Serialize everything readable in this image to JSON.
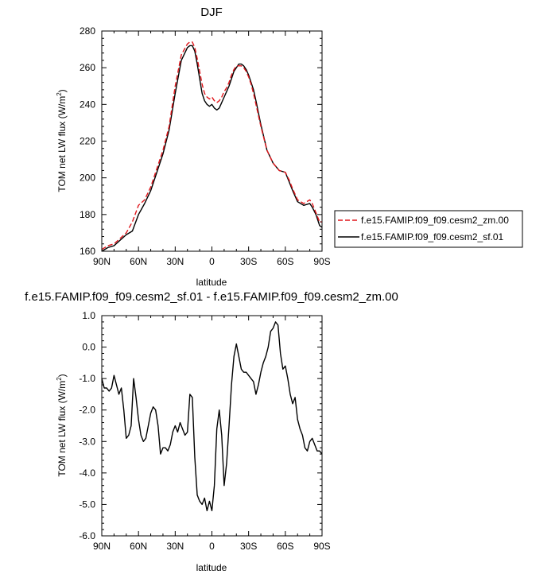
{
  "chart_data": [
    {
      "type": "line",
      "title": "DJF",
      "xlabel": "latitude",
      "ylabel_main": "TOM net LW flux (W/m",
      "ylabel_sup": "2",
      "ylabel_end": ")",
      "xlim": [
        90,
        -90
      ],
      "ylim": [
        160,
        280
      ],
      "x_ticks": [
        {
          "value": 90,
          "label": "90N"
        },
        {
          "value": 60,
          "label": "60N"
        },
        {
          "value": 30,
          "label": "30N"
        },
        {
          "value": 0,
          "label": "0"
        },
        {
          "value": -30,
          "label": "30S"
        },
        {
          "value": -60,
          "label": "60S"
        },
        {
          "value": -90,
          "label": "90S"
        }
      ],
      "y_ticks": [
        {
          "value": 160,
          "label": "160"
        },
        {
          "value": 180,
          "label": "180"
        },
        {
          "value": 200,
          "label": "200"
        },
        {
          "value": 220,
          "label": "220"
        },
        {
          "value": 240,
          "label": "240"
        },
        {
          "value": 260,
          "label": "260"
        },
        {
          "value": 280,
          "label": "280"
        }
      ],
      "legend_position": "right",
      "series": [
        {
          "name": "f.e15.FAMIP.f09_f09.cesm2_zm.00",
          "color": "#e0161b",
          "dash": "dashed",
          "x": [
            90,
            85,
            80,
            75,
            70,
            65,
            60,
            55,
            50,
            45,
            40,
            35,
            30,
            25,
            20,
            18,
            16,
            14,
            12,
            10,
            8,
            6,
            4,
            2,
            0,
            -2,
            -4,
            -6,
            -8,
            -10,
            -12,
            -14,
            -16,
            -18,
            -20,
            -22,
            -24,
            -26,
            -28,
            -30,
            -32,
            -34,
            -36,
            -40,
            -45,
            -50,
            -55,
            -60,
            -63,
            -66,
            -70,
            -75,
            -80,
            -82,
            -85,
            -88,
            -90
          ],
          "y": [
            161,
            163,
            164,
            167,
            170,
            176,
            185,
            188,
            195,
            205,
            215,
            228,
            250,
            267,
            273,
            274,
            274,
            271,
            265,
            258,
            251,
            246,
            244,
            243,
            244,
            242,
            241,
            242,
            244,
            247,
            249,
            252,
            256,
            259,
            261,
            261,
            261,
            260,
            258,
            255,
            251,
            246,
            240,
            228,
            215,
            208,
            204,
            203,
            199,
            194,
            188,
            186,
            188,
            186,
            181,
            176,
            176
          ]
        },
        {
          "name": "f.e15.FAMIP.f09_f09.cesm2_sf.01",
          "color": "#000000",
          "dash": "solid",
          "x": [
            90,
            85,
            80,
            75,
            70,
            65,
            60,
            55,
            50,
            45,
            40,
            35,
            30,
            25,
            20,
            18,
            16,
            14,
            12,
            10,
            8,
            6,
            4,
            2,
            0,
            -2,
            -4,
            -6,
            -8,
            -10,
            -12,
            -14,
            -16,
            -18,
            -20,
            -22,
            -24,
            -26,
            -28,
            -30,
            -32,
            -34,
            -36,
            -40,
            -45,
            -50,
            -55,
            -60,
            -63,
            -66,
            -70,
            -75,
            -80,
            -82,
            -85,
            -88,
            -90
          ],
          "y": [
            160,
            162,
            163,
            166,
            169,
            171,
            180,
            186,
            193,
            203,
            213,
            226,
            246,
            264,
            271,
            272,
            272,
            269,
            262,
            254,
            246,
            242,
            240,
            239,
            240,
            238,
            237,
            238,
            241,
            244,
            247,
            250,
            254,
            258,
            260,
            262,
            262,
            261,
            259,
            256,
            252,
            248,
            242,
            229,
            215,
            208,
            204,
            203,
            198,
            193,
            187,
            185,
            186,
            184,
            180,
            174,
            173
          ]
        }
      ]
    },
    {
      "type": "line",
      "title": "f.e15.FAMIP.f09_f09.cesm2_sf.01 - f.e15.FAMIP.f09_f09.cesm2_zm.00",
      "xlabel": "latitude",
      "ylabel_main": "TOM net LW flux (W/m",
      "ylabel_sup": "2",
      "ylabel_end": ")",
      "xlim": [
        90,
        -90
      ],
      "ylim": [
        -6.0,
        1.0
      ],
      "x_ticks": [
        {
          "value": 90,
          "label": "90N"
        },
        {
          "value": 60,
          "label": "60N"
        },
        {
          "value": 30,
          "label": "30N"
        },
        {
          "value": 0,
          "label": "0"
        },
        {
          "value": -30,
          "label": "30S"
        },
        {
          "value": -60,
          "label": "60S"
        },
        {
          "value": -90,
          "label": "90S"
        }
      ],
      "y_ticks": [
        {
          "value": 1.0,
          "label": "1.0"
        },
        {
          "value": 0.0,
          "label": "0.0"
        },
        {
          "value": -1.0,
          "label": "-1.0"
        },
        {
          "value": -2.0,
          "label": "-2.0"
        },
        {
          "value": -3.0,
          "label": "-3.0"
        },
        {
          "value": -4.0,
          "label": "-4.0"
        },
        {
          "value": -5.0,
          "label": "-5.0"
        },
        {
          "value": -6.0,
          "label": "-6.0"
        }
      ],
      "series": [
        {
          "color": "#000000",
          "dash": "solid",
          "x": [
            90,
            88,
            86,
            84,
            82,
            80,
            78,
            76,
            74,
            72,
            70,
            68,
            66,
            64,
            62,
            60,
            58,
            56,
            54,
            52,
            50,
            48,
            46,
            44,
            42,
            40,
            38,
            36,
            34,
            32,
            30,
            28,
            26,
            24,
            22,
            20,
            18,
            16,
            14,
            12,
            10,
            8,
            6,
            4,
            2,
            0,
            -2,
            -4,
            -6,
            -8,
            -10,
            -12,
            -14,
            -16,
            -18,
            -20,
            -22,
            -24,
            -26,
            -28,
            -30,
            -32,
            -34,
            -36,
            -38,
            -40,
            -42,
            -44,
            -46,
            -48,
            -50,
            -52,
            -54,
            -56,
            -58,
            -60,
            -62,
            -64,
            -66,
            -68,
            -70,
            -72,
            -74,
            -76,
            -78,
            -80,
            -82,
            -84,
            -86,
            -88,
            -90
          ],
          "y": [
            -1.0,
            -1.3,
            -1.3,
            -1.4,
            -1.3,
            -0.9,
            -1.2,
            -1.5,
            -1.3,
            -2.0,
            -2.9,
            -2.8,
            -2.5,
            -1.0,
            -1.6,
            -2.3,
            -2.8,
            -3.0,
            -2.9,
            -2.5,
            -2.1,
            -1.9,
            -2.0,
            -2.5,
            -3.4,
            -3.2,
            -3.2,
            -3.3,
            -3.1,
            -2.7,
            -2.5,
            -2.7,
            -2.4,
            -2.6,
            -2.8,
            -2.7,
            -1.5,
            -1.6,
            -3.5,
            -4.7,
            -4.9,
            -5.0,
            -4.8,
            -5.2,
            -4.9,
            -5.2,
            -4.4,
            -2.6,
            -2.0,
            -2.8,
            -4.4,
            -3.7,
            -2.5,
            -1.2,
            -0.3,
            0.1,
            -0.3,
            -0.7,
            -0.8,
            -0.8,
            -0.9,
            -1.0,
            -1.1,
            -1.5,
            -1.2,
            -0.8,
            -0.5,
            -0.3,
            0.0,
            0.5,
            0.6,
            0.8,
            0.7,
            -0.2,
            -0.7,
            -0.6,
            -1.0,
            -1.5,
            -1.8,
            -1.6,
            -2.3,
            -2.6,
            -2.8,
            -3.2,
            -3.3,
            -3.0,
            -2.9,
            -3.1,
            -3.3,
            -3.3,
            -3.4
          ]
        }
      ]
    }
  ]
}
